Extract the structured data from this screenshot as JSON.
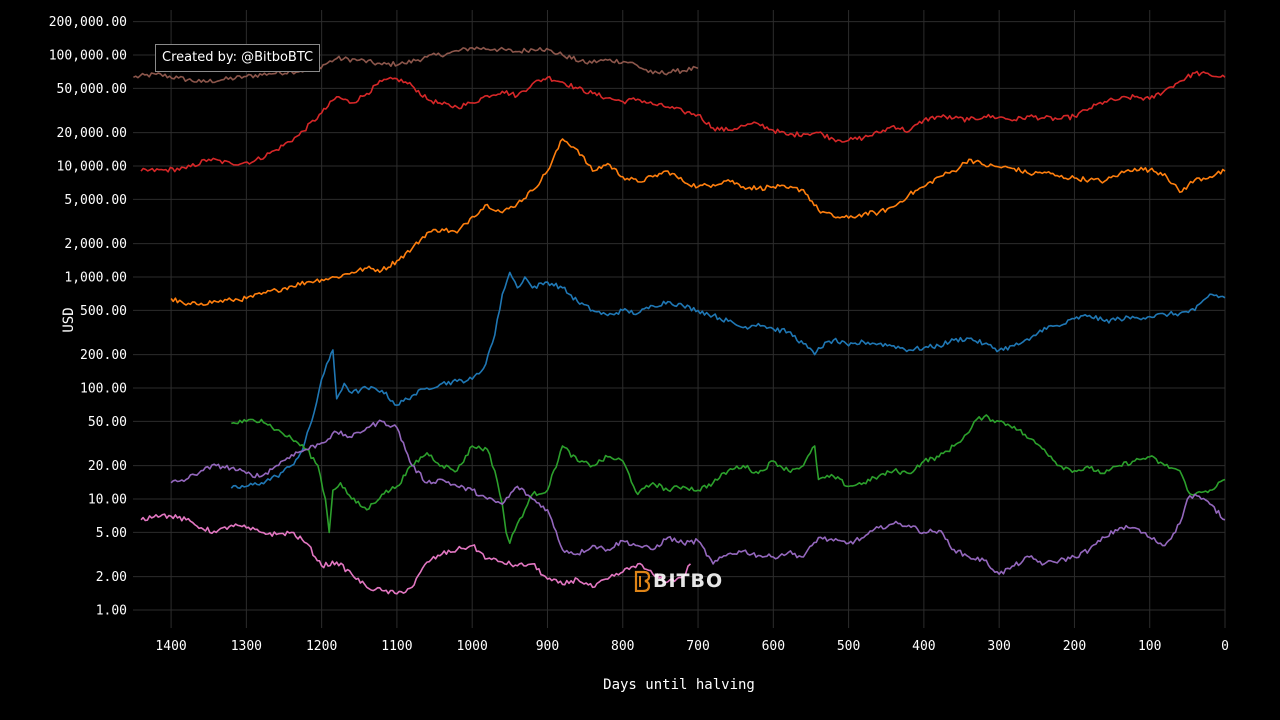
{
  "credit": "Created by: @BitboBTC",
  "watermark": "BITBO",
  "chart_data": {
    "type": "line",
    "title": "",
    "xlabel": "Days until halving",
    "ylabel": "USD",
    "x_reversed": true,
    "xlim": [
      0,
      1400
    ],
    "y_scale": "log",
    "ylim": [
      1,
      200000
    ],
    "grid": true,
    "x_ticks": [
      "1400",
      "1300",
      "1200",
      "1100",
      "1000",
      "900",
      "800",
      "700",
      "600",
      "500",
      "400",
      "300",
      "200",
      "100",
      "0"
    ],
    "y_ticks": [
      "1.00",
      "2.00",
      "5.00",
      "10.00",
      "20.00",
      "50.00",
      "100.00",
      "200.00",
      "500.00",
      "1,000.00",
      "2,000.00",
      "5,000.00",
      "10,000.00",
      "20,000.00",
      "50,000.00",
      "100,000.00",
      "200,000.00"
    ],
    "series": [
      {
        "color": "#8c564b",
        "x": [
          1450,
          1420,
          1390,
          1360,
          1330,
          1300,
          1270,
          1240,
          1210,
          1180,
          1150,
          1120,
          1090,
          1060,
          1030,
          1000,
          970,
          940,
          910,
          880,
          850,
          820,
          790,
          760,
          730,
          700
        ],
        "y": [
          63000,
          67000,
          62000,
          57000,
          60000,
          64000,
          68000,
          71000,
          74000,
          93000,
          90000,
          82000,
          84000,
          96000,
          104000,
          116000,
          113000,
          107000,
          116000,
          100000,
          85000,
          90000,
          86000,
          68000,
          71000,
          76000
        ]
      },
      {
        "color": "#d62728",
        "x": [
          1440,
          1410,
          1380,
          1350,
          1320,
          1290,
          1260,
          1230,
          1200,
          1180,
          1160,
          1140,
          1120,
          1100,
          1080,
          1060,
          1040,
          1020,
          1000,
          980,
          960,
          940,
          920,
          900,
          880,
          860,
          840,
          820,
          800,
          780,
          760,
          740,
          720,
          700,
          680,
          660,
          640,
          620,
          600,
          580,
          560,
          540,
          520,
          500,
          480,
          460,
          440,
          420,
          400,
          380,
          360,
          340,
          320,
          300,
          280,
          260,
          240,
          220,
          200,
          180,
          160,
          140,
          120,
          100,
          80,
          60,
          40,
          20,
          0
        ],
        "y": [
          9000,
          9200,
          9500,
          11500,
          10500,
          11000,
          14000,
          19000,
          30000,
          42000,
          37000,
          45000,
          58000,
          61000,
          53000,
          40000,
          36000,
          34000,
          37000,
          43000,
          47000,
          43000,
          55000,
          63000,
          57000,
          50000,
          45000,
          41000,
          38000,
          40000,
          36000,
          34000,
          31000,
          29000,
          22000,
          21000,
          23000,
          24000,
          21000,
          19000,
          19500,
          20000,
          17500,
          17000,
          18000,
          20000,
          23000,
          20500,
          26000,
          28000,
          27000,
          26000,
          28000,
          27500,
          26000,
          28000,
          27000,
          26500,
          28000,
          33000,
          38000,
          40000,
          42000,
          40000,
          48000,
          58000,
          69000,
          66000,
          63000
        ]
      },
      {
        "color": "#ff7f0e",
        "x": [
          1400,
          1380,
          1360,
          1340,
          1320,
          1300,
          1280,
          1260,
          1240,
          1220,
          1200,
          1180,
          1160,
          1140,
          1120,
          1100,
          1080,
          1060,
          1040,
          1020,
          1000,
          980,
          960,
          940,
          920,
          900,
          880,
          860,
          840,
          820,
          800,
          780,
          760,
          740,
          720,
          700,
          680,
          660,
          640,
          620,
          600,
          580,
          560,
          540,
          520,
          500,
          480,
          460,
          440,
          420,
          400,
          380,
          360,
          340,
          320,
          300,
          280,
          260,
          240,
          220,
          200,
          180,
          160,
          140,
          120,
          100,
          80,
          60,
          40,
          20,
          0
        ],
        "y": [
          640,
          560,
          580,
          600,
          620,
          640,
          700,
          760,
          830,
          900,
          950,
          1000,
          1100,
          1200,
          1150,
          1400,
          1800,
          2500,
          2700,
          2500,
          3500,
          4500,
          3800,
          4600,
          6000,
          9000,
          17500,
          14000,
          9000,
          10500,
          8000,
          7200,
          8000,
          9000,
          7300,
          6500,
          6800,
          7500,
          6500,
          6300,
          6500,
          6300,
          6100,
          4000,
          3500,
          3400,
          3700,
          3800,
          4300,
          5500,
          6500,
          8000,
          9000,
          11500,
          10200,
          9800,
          9500,
          8500,
          8800,
          8000,
          7800,
          7500,
          7300,
          8500,
          9500,
          9200,
          8500,
          5800,
          7500,
          8000,
          9000
        ]
      },
      {
        "color": "#1f77b4",
        "x": [
          1320,
          1300,
          1280,
          1260,
          1240,
          1225,
          1210,
          1200,
          1190,
          1185,
          1180,
          1170,
          1160,
          1140,
          1120,
          1100,
          1080,
          1060,
          1040,
          1020,
          1000,
          985,
          970,
          960,
          950,
          940,
          930,
          920,
          900,
          880,
          860,
          840,
          820,
          800,
          780,
          760,
          740,
          720,
          700,
          680,
          660,
          640,
          620,
          600,
          580,
          560,
          545,
          540,
          520,
          500,
          480,
          460,
          440,
          420,
          400,
          380,
          360,
          340,
          320,
          300,
          280,
          260,
          240,
          220,
          200,
          180,
          160,
          140,
          120,
          100,
          80,
          60,
          40,
          20,
          0
        ],
        "y": [
          12.5,
          13,
          14,
          16,
          20,
          28,
          60,
          120,
          180,
          220,
          80,
          110,
          90,
          100,
          95,
          70,
          85,
          100,
          110,
          115,
          120,
          150,
          300,
          700,
          1100,
          800,
          1000,
          800,
          900,
          800,
          600,
          500,
          450,
          500,
          470,
          550,
          600,
          550,
          500,
          450,
          400,
          350,
          380,
          340,
          320,
          250,
          200,
          230,
          270,
          240,
          260,
          250,
          240,
          220,
          230,
          240,
          270,
          280,
          250,
          220,
          240,
          270,
          350,
          360,
          420,
          450,
          400,
          420,
          430,
          440,
          460,
          470,
          500,
          700,
          650
        ]
      },
      {
        "color": "#2ca02c",
        "x": [
          1320,
          1300,
          1280,
          1260,
          1240,
          1220,
          1205,
          1195,
          1190,
          1185,
          1175,
          1160,
          1140,
          1120,
          1100,
          1080,
          1060,
          1040,
          1020,
          1000,
          980,
          970,
          960,
          955,
          950,
          940,
          930,
          920,
          900,
          880,
          860,
          840,
          820,
          800,
          780,
          760,
          740,
          720,
          700,
          680,
          660,
          640,
          620,
          600,
          580,
          560,
          545,
          540,
          520,
          500,
          480,
          460,
          440,
          420,
          400,
          380,
          360,
          340,
          330,
          320,
          300,
          280,
          260,
          240,
          220,
          200,
          180,
          160,
          140,
          120,
          100,
          80,
          60,
          50,
          40,
          20,
          0
        ],
        "y": [
          48,
          50,
          52,
          42,
          35,
          28,
          20,
          10,
          5,
          12,
          14,
          10,
          8,
          11,
          13,
          20,
          26,
          20,
          18,
          30,
          28,
          18,
          9,
          5,
          4,
          6,
          8,
          11,
          12,
          30,
          22,
          20,
          24,
          22,
          11,
          14,
          12,
          13,
          12,
          14,
          18,
          20,
          17,
          22,
          18,
          20,
          30,
          15,
          16,
          13,
          14,
          16,
          18,
          17,
          22,
          24,
          30,
          40,
          52,
          55,
          50,
          45,
          35,
          28,
          20,
          18,
          19,
          17,
          20,
          22,
          24,
          20,
          18,
          12,
          11,
          12,
          15
        ]
      },
      {
        "color": "#9467bd",
        "x": [
          1400,
          1380,
          1360,
          1340,
          1320,
          1300,
          1280,
          1260,
          1240,
          1220,
          1200,
          1180,
          1160,
          1140,
          1120,
          1100,
          1080,
          1060,
          1040,
          1020,
          1000,
          980,
          960,
          940,
          920,
          900,
          880,
          860,
          840,
          820,
          800,
          780,
          760,
          740,
          720,
          700,
          680,
          660,
          640,
          620,
          600,
          580,
          560,
          540,
          520,
          500,
          480,
          460,
          440,
          420,
          400,
          380,
          360,
          340,
          320,
          300,
          280,
          260,
          240,
          220,
          200,
          180,
          160,
          140,
          120,
          100,
          80,
          60,
          50,
          40,
          20,
          0
        ],
        "y": [
          14,
          15,
          18,
          20,
          19,
          17,
          16,
          20,
          25,
          28,
          32,
          40,
          36,
          44,
          50,
          44,
          20,
          14,
          15,
          13,
          12,
          10,
          9,
          13,
          10,
          8,
          3.5,
          3.2,
          3.8,
          3.5,
          4.2,
          3.8,
          3.5,
          4.5,
          4.0,
          4.2,
          2.6,
          3.2,
          3.4,
          3.1,
          3.0,
          3.3,
          3.0,
          4.5,
          4.2,
          4.0,
          4.5,
          5.5,
          6.0,
          5.8,
          5.0,
          5.2,
          3.5,
          3.0,
          2.8,
          2.1,
          2.5,
          3.0,
          2.6,
          2.8,
          3.0,
          3.5,
          4.5,
          5.5,
          5.5,
          4.5,
          3.8,
          6.0,
          10.0,
          11.0,
          9.0,
          6.5
        ]
      },
      {
        "color": "#e377c2",
        "x": [
          1440,
          1420,
          1400,
          1380,
          1360,
          1340,
          1320,
          1300,
          1280,
          1260,
          1240,
          1220,
          1200,
          1180,
          1160,
          1140,
          1120,
          1100,
          1080,
          1060,
          1040,
          1020,
          1000,
          980,
          960,
          940,
          920,
          900,
          880,
          860,
          840,
          820,
          800,
          780,
          760,
          740,
          720,
          710
        ],
        "y": [
          6.5,
          7.2,
          7.0,
          6.5,
          5.5,
          5.0,
          5.8,
          5.5,
          5.0,
          4.8,
          5.0,
          4.0,
          2.5,
          2.7,
          2.1,
          1.6,
          1.5,
          1.4,
          1.6,
          2.7,
          3.2,
          3.5,
          3.8,
          2.9,
          2.7,
          2.5,
          2.6,
          1.9,
          1.7,
          1.9,
          1.6,
          1.9,
          2.2,
          2.6,
          2.1,
          1.8,
          2.0,
          2.6
        ]
      }
    ]
  }
}
